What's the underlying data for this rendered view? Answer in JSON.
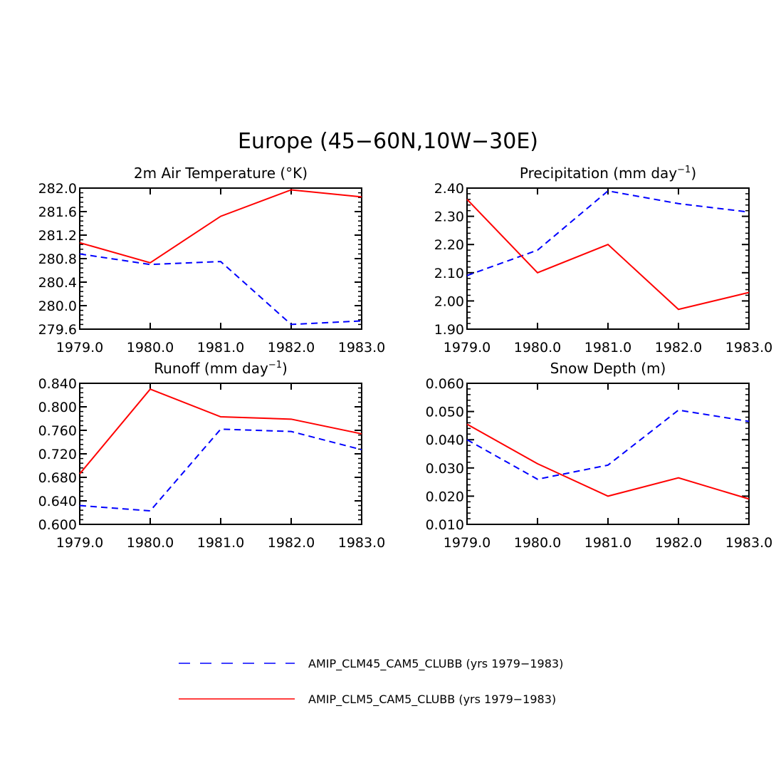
{
  "figure_title": "Europe (45−60N,10W−30E)",
  "colors": {
    "series_1": "#0000ff",
    "series_2": "#ff0000",
    "axes": "#000000"
  },
  "legend": {
    "entries": [
      {
        "label": "AMIP_CLM45_CAM5_CLUBB (yrs 1979−1983)",
        "style": "dashed",
        "color": "#0000ff"
      },
      {
        "label": "AMIP_CLM5_CAM5_CLUBB (yrs 1979−1983)",
        "style": "solid",
        "color": "#ff0000"
      }
    ]
  },
  "chart_data": [
    {
      "type": "line",
      "title": "2m Air Temperature (°K)",
      "title_main": "2m Air Temperature (°K)",
      "title_sup": "",
      "title_tail": "",
      "x": [
        1979,
        1980,
        1981,
        1982,
        1983
      ],
      "xlim": [
        1979,
        1983
      ],
      "xticks": [
        "1979.0",
        "1980.0",
        "1981.0",
        "1982.0",
        "1983.0"
      ],
      "ylim": [
        279.6,
        282.0
      ],
      "yticks": [
        "279.6",
        "280.0",
        "280.4",
        "280.8",
        "281.2",
        "281.6",
        "282.0"
      ],
      "series": [
        {
          "values": [
            280.88,
            280.7,
            280.75,
            279.68,
            279.74
          ],
          "style": "dashed",
          "color": "#0000ff"
        },
        {
          "values": [
            281.07,
            280.73,
            281.52,
            281.97,
            281.85
          ],
          "style": "solid",
          "color": "#ff0000"
        }
      ]
    },
    {
      "type": "line",
      "title": "Precipitation (mm day⁻¹)",
      "title_main": "Precipitation (mm day",
      "title_sup": "−1",
      "title_tail": ")",
      "x": [
        1979,
        1980,
        1981,
        1982,
        1983
      ],
      "xlim": [
        1979,
        1983
      ],
      "xticks": [
        "1979.0",
        "1980.0",
        "1981.0",
        "1982.0",
        "1983.0"
      ],
      "ylim": [
        1.9,
        2.4
      ],
      "yticks": [
        "1.90",
        "2.00",
        "2.10",
        "2.20",
        "2.30",
        "2.40"
      ],
      "series": [
        {
          "values": [
            2.09,
            2.18,
            2.39,
            2.345,
            2.315
          ],
          "style": "dashed",
          "color": "#0000ff"
        },
        {
          "values": [
            2.36,
            2.1,
            2.2,
            1.97,
            2.03
          ],
          "style": "solid",
          "color": "#ff0000"
        }
      ]
    },
    {
      "type": "line",
      "title": "Runoff (mm day⁻¹)",
      "title_main": "Runoff (mm day",
      "title_sup": "−1",
      "title_tail": ")",
      "x": [
        1979,
        1980,
        1981,
        1982,
        1983
      ],
      "xlim": [
        1979,
        1983
      ],
      "xticks": [
        "1979.0",
        "1980.0",
        "1981.0",
        "1982.0",
        "1983.0"
      ],
      "ylim": [
        0.6,
        0.84
      ],
      "yticks": [
        "0.600",
        "0.640",
        "0.680",
        "0.720",
        "0.760",
        "0.800",
        "0.840"
      ],
      "series": [
        {
          "values": [
            0.632,
            0.623,
            0.762,
            0.758,
            0.727
          ],
          "style": "dashed",
          "color": "#0000ff"
        },
        {
          "values": [
            0.686,
            0.83,
            0.783,
            0.779,
            0.754
          ],
          "style": "solid",
          "color": "#ff0000"
        }
      ]
    },
    {
      "type": "line",
      "title": "Snow Depth (m)",
      "title_main": "Snow Depth (m)",
      "title_sup": "",
      "title_tail": "",
      "x": [
        1979,
        1980,
        1981,
        1982,
        1983
      ],
      "xlim": [
        1979,
        1983
      ],
      "xticks": [
        "1979.0",
        "1980.0",
        "1981.0",
        "1982.0",
        "1983.0"
      ],
      "ylim": [
        0.01,
        0.06
      ],
      "yticks": [
        "0.010",
        "0.020",
        "0.030",
        "0.040",
        "0.050",
        "0.060"
      ],
      "series": [
        {
          "values": [
            0.04,
            0.026,
            0.031,
            0.0505,
            0.0465
          ],
          "style": "dashed",
          "color": "#0000ff"
        },
        {
          "values": [
            0.0455,
            0.0315,
            0.02,
            0.0265,
            0.019
          ],
          "style": "solid",
          "color": "#ff0000"
        }
      ]
    }
  ]
}
